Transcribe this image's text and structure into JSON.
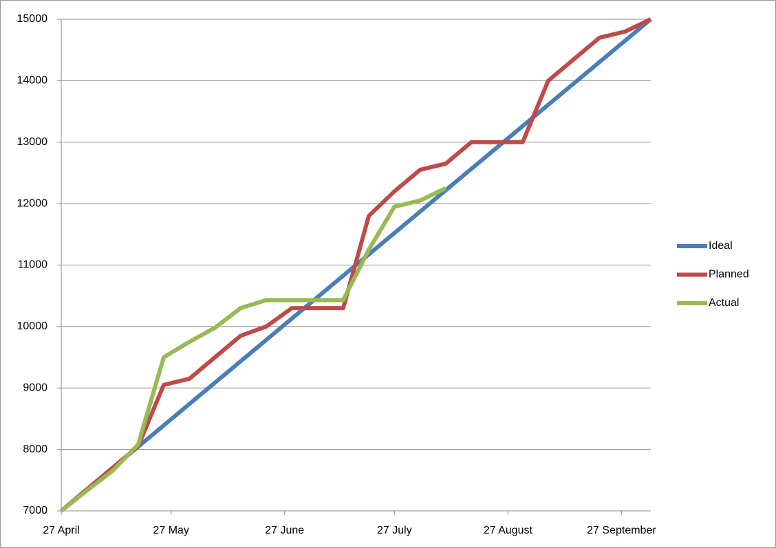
{
  "chart_data": {
    "type": "line",
    "xlim": [
      0,
      161
    ],
    "xticks": [
      {
        "value": 0,
        "label": "27 April"
      },
      {
        "value": 30,
        "label": "27 May"
      },
      {
        "value": 61,
        "label": "27 June"
      },
      {
        "value": 91,
        "label": "27 July"
      },
      {
        "value": 122,
        "label": "27 August"
      },
      {
        "value": 153,
        "label": "27 September"
      }
    ],
    "ylim": [
      7000,
      15000
    ],
    "yticks": [
      7000,
      8000,
      9000,
      10000,
      11000,
      12000,
      13000,
      14000,
      15000
    ],
    "grid": true,
    "legend": "right",
    "series": [
      {
        "name": "Ideal",
        "color": "#4a7ebb",
        "x": [
          0,
          161
        ],
        "values": [
          7000,
          15000
        ]
      },
      {
        "name": "Planned",
        "color": "#be4b48",
        "x": [
          0,
          7,
          14,
          21,
          28,
          35,
          42,
          49,
          56,
          63,
          70,
          77,
          84,
          91,
          98,
          105,
          112,
          119,
          126,
          133,
          140,
          147,
          154,
          161
        ],
        "values": [
          7000,
          7350,
          7700,
          8050,
          9050,
          9150,
          9500,
          9850,
          10000,
          10300,
          10300,
          10300,
          11800,
          12200,
          12550,
          12650,
          13000,
          13000,
          13000,
          14000,
          14350,
          14700,
          14800,
          15000
        ]
      },
      {
        "name": "Actual",
        "color": "#98b954",
        "x": [
          0,
          7,
          14,
          21,
          28,
          35,
          42,
          49,
          56,
          63,
          70,
          77,
          84,
          91,
          98,
          105
        ],
        "values": [
          7000,
          7330,
          7650,
          8080,
          9500,
          9750,
          9980,
          10300,
          10430,
          10430,
          10430,
          10430,
          11250,
          11950,
          12050,
          12250
        ]
      }
    ]
  }
}
